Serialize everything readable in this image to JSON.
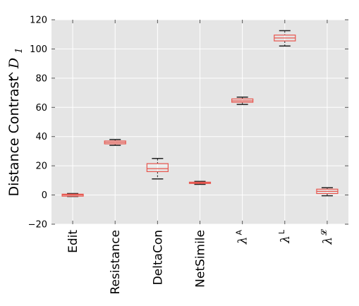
{
  "chart_data": {
    "type": "box",
    "ylabel": "Distance Contrast",
    "ylabel_symbol": "D",
    "ylabel_subscript": "1",
    "ylim": [
      -20,
      120
    ],
    "yticks": [
      -20,
      0,
      20,
      40,
      60,
      80,
      100,
      120
    ],
    "grid": true,
    "categories": [
      {
        "label": "Edit",
        "symbol": "",
        "superscript": "",
        "min": -1,
        "q1": -0.8,
        "median": 0,
        "q3": 0.6,
        "max": 1
      },
      {
        "label": "Resistance",
        "symbol": "",
        "superscript": "",
        "min": 34,
        "q1": 35,
        "median": 36,
        "q3": 37,
        "max": 38
      },
      {
        "label": "DeltaCon",
        "symbol": "",
        "superscript": "",
        "min": 11,
        "q1": 16,
        "median": 18,
        "q3": 21.5,
        "max": 25
      },
      {
        "label": "NetSimile",
        "symbol": "",
        "superscript": "",
        "min": 7.3,
        "q1": 7.9,
        "median": 8.3,
        "q3": 8.8,
        "max": 9.3
      },
      {
        "label": "",
        "symbol": "λ",
        "superscript": "A",
        "min": 62,
        "q1": 63.5,
        "median": 64.5,
        "q3": 65.8,
        "max": 67
      },
      {
        "label": "",
        "symbol": "λ",
        "superscript": "L",
        "min": 102,
        "q1": 105.5,
        "median": 107.5,
        "q3": 109.5,
        "max": 112.5
      },
      {
        "label": "",
        "symbol": "λ",
        "superscript": "𝓛",
        "min": -0.5,
        "q1": 1,
        "median": 2.5,
        "q3": 4,
        "max": 5
      }
    ]
  },
  "colors": {
    "plot_background": "#e5e5e5",
    "grid": "#ffffff",
    "box": "#e8564e",
    "whisker": "#222222"
  }
}
